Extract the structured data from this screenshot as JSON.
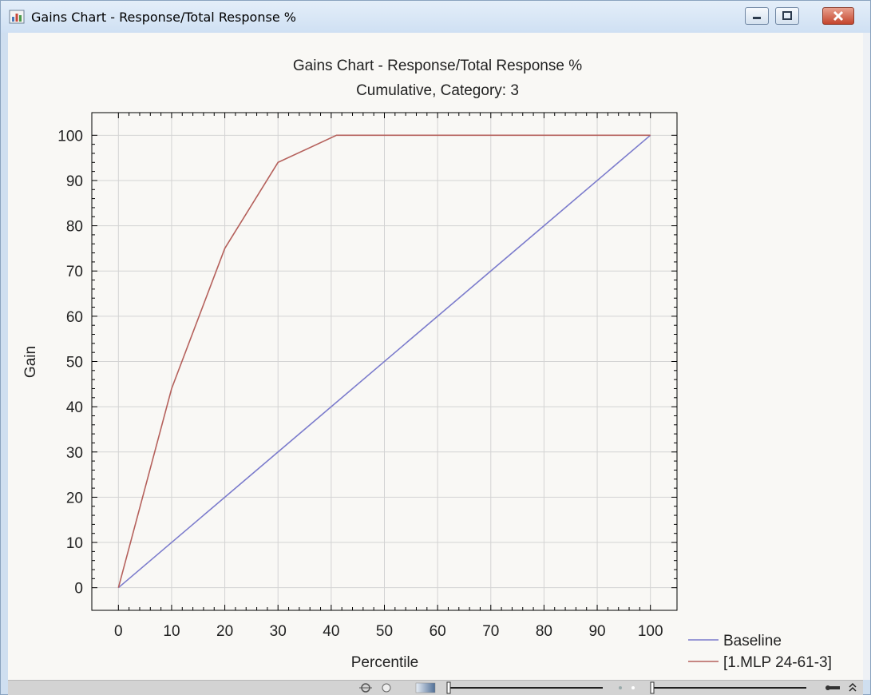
{
  "window": {
    "title": "Gains Chart - Response/Total Response %",
    "icon": "chart-window-icon"
  },
  "chart_data": {
    "type": "line",
    "title": "Gains Chart - Response/Total Response %",
    "subtitle": "Cumulative, Category: 3",
    "xlabel": "Percentile",
    "ylabel": "Gain",
    "xlim": [
      -5,
      105
    ],
    "ylim": [
      -5,
      105
    ],
    "xticks": [
      0,
      10,
      20,
      30,
      40,
      50,
      60,
      70,
      80,
      90,
      100
    ],
    "yticks": [
      0,
      10,
      20,
      30,
      40,
      50,
      60,
      70,
      80,
      90,
      100
    ],
    "grid": true,
    "legend": "bottom-right",
    "series": [
      {
        "name": "Baseline",
        "color": "#7b7bcc",
        "x": [
          0,
          100
        ],
        "y": [
          0,
          100
        ]
      },
      {
        "name": "[1.MLP 24-61-3]",
        "color": "#b5615c",
        "x": [
          0,
          10,
          20,
          30,
          41,
          100
        ],
        "y": [
          0,
          44,
          75,
          94,
          100,
          100
        ]
      }
    ]
  },
  "colors": {
    "window_frame": "#cfdff0",
    "plot_background": "#f9f8f5",
    "grid": "#d3d3d3",
    "close_button": "#c4452d"
  },
  "statusbar": {
    "icons": [
      "move-icon",
      "pan-icon",
      "gradient-icon",
      "zoom-slider",
      "brightness-slider",
      "pin-icon",
      "collapse-icon"
    ]
  }
}
